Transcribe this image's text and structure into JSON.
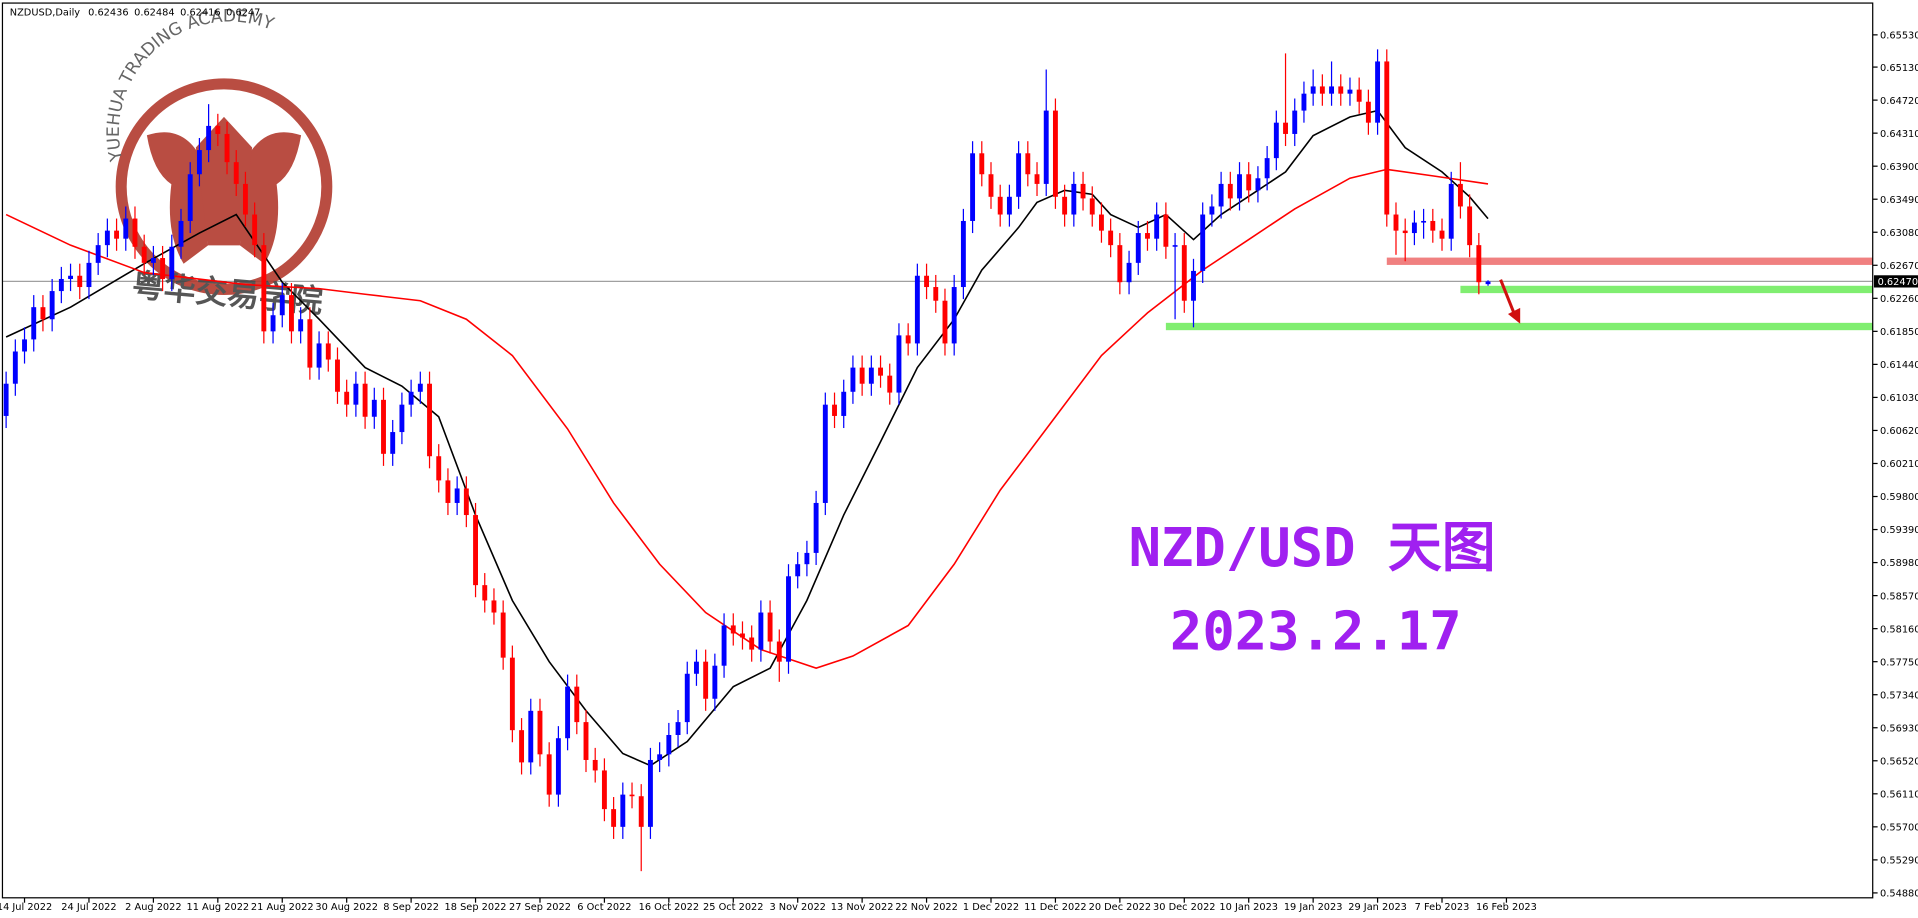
{
  "chart_data": {
    "type": "candlestick",
    "symbol": "NZDUSD,Daily",
    "annotations": [
      "NZD/USD 天图",
      "2023.2.17"
    ],
    "watermark": {
      "arc": "YUEHUA TRADING ACADEMY",
      "name": "粤华交易学院"
    },
    "colors": {
      "up": "#0000ff",
      "down": "#ff0000",
      "ma_fast": "#000000",
      "ma_slow": "#ff0000",
      "annotation": "#a020f0"
    },
    "ylim": [
      0.54637,
      0.65955
    ],
    "yticks": [
      {
        "value": 0.6553,
        "label": "0.65530"
      },
      {
        "value": 0.6513,
        "label": "0.65130"
      },
      {
        "value": 0.6472,
        "label": "0.64720"
      },
      {
        "value": 0.6431,
        "label": "0.64310"
      },
      {
        "value": 0.639,
        "label": "0.63900"
      },
      {
        "value": 0.6349,
        "label": "0.63490"
      },
      {
        "value": 0.6308,
        "label": "0.63080"
      },
      {
        "value": 0.6267,
        "label": "0.62670"
      },
      {
        "value": 0.6226,
        "label": "0.62260"
      },
      {
        "value": 0.6185,
        "label": "0.61850"
      },
      {
        "value": 0.6144,
        "label": "0.61440"
      },
      {
        "value": 0.6103,
        "label": "0.61030"
      },
      {
        "value": 0.6062,
        "label": "0.60620"
      },
      {
        "value": 0.6021,
        "label": "0.60210"
      },
      {
        "value": 0.598,
        "label": "0.59800"
      },
      {
        "value": 0.5939,
        "label": "0.59390"
      },
      {
        "value": 0.5898,
        "label": "0.58980"
      },
      {
        "value": 0.5857,
        "label": "0.58570"
      },
      {
        "value": 0.5816,
        "label": "0.58160"
      },
      {
        "value": 0.5775,
        "label": "0.57750"
      },
      {
        "value": 0.5734,
        "label": "0.57340"
      },
      {
        "value": 0.5693,
        "label": "0.56930"
      },
      {
        "value": 0.5652,
        "label": "0.56520"
      },
      {
        "value": 0.5611,
        "label": "0.56110"
      },
      {
        "value": 0.557,
        "label": "0.55700"
      },
      {
        "value": 0.5529,
        "label": "0.55290"
      },
      {
        "value": 0.5488,
        "label": "0.54880"
      }
    ],
    "xticks": [
      {
        "value": 2,
        "label": "14 Jul 2022"
      },
      {
        "value": 9,
        "label": "24 Jul 2022"
      },
      {
        "value": 16,
        "label": "2 Aug 2022"
      },
      {
        "value": 23,
        "label": "11 Aug 2022"
      },
      {
        "value": 30,
        "label": "21 Aug 2022"
      },
      {
        "value": 37,
        "label": "30 Aug 2022"
      },
      {
        "value": 44,
        "label": "8 Sep 2022"
      },
      {
        "value": 51,
        "label": "18 Sep 2022"
      },
      {
        "value": 58,
        "label": "27 Sep 2022"
      },
      {
        "value": 65,
        "label": "6 Oct 2022"
      },
      {
        "value": 72,
        "label": "16 Oct 2022"
      },
      {
        "value": 79,
        "label": "25 Oct 2022"
      },
      {
        "value": 86,
        "label": "3 Nov 2022"
      },
      {
        "value": 93,
        "label": "13 Nov 2022"
      },
      {
        "value": 100,
        "label": "22 Nov 2022"
      },
      {
        "value": 107,
        "label": "1 Dec 2022"
      },
      {
        "value": 114,
        "label": "11 Dec 2022"
      },
      {
        "value": 121,
        "label": "20 Dec 2022"
      },
      {
        "value": 128,
        "label": "30 Dec 2022"
      },
      {
        "value": 135,
        "label": "10 Jan 2023"
      },
      {
        "value": 142,
        "label": "19 Jan 2023"
      },
      {
        "value": 149,
        "label": "29 Jan 2023"
      },
      {
        "value": 156,
        "label": "7 Feb 2023"
      },
      {
        "value": 163,
        "label": "16 Feb 2023"
      }
    ],
    "current_price": {
      "value": 0.6247,
      "label": "0.62470"
    },
    "levels": [
      {
        "value": 0.6272,
        "from": 150,
        "color": "#f08080"
      },
      {
        "value": 0.6237,
        "from": 158,
        "color": "#80ee70"
      },
      {
        "value": 0.6191,
        "from": 126,
        "color": "#80ee70"
      }
    ],
    "ohlc": [
      [
        0.608,
        0.6135,
        0.6065,
        0.612
      ],
      [
        0.612,
        0.6175,
        0.6105,
        0.616
      ],
      [
        0.616,
        0.619,
        0.6145,
        0.6175
      ],
      [
        0.6175,
        0.623,
        0.616,
        0.6215
      ],
      [
        0.6215,
        0.623,
        0.6185,
        0.62
      ],
      [
        0.62,
        0.625,
        0.6185,
        0.6235
      ],
      [
        0.6235,
        0.6265,
        0.622,
        0.625
      ],
      [
        0.625,
        0.6269,
        0.6235,
        0.6254
      ],
      [
        0.6254,
        0.6269,
        0.6225,
        0.624
      ],
      [
        0.624,
        0.6285,
        0.6225,
        0.627
      ],
      [
        0.627,
        0.6307,
        0.6255,
        0.6292
      ],
      [
        0.6292,
        0.6325,
        0.6277,
        0.631
      ],
      [
        0.631,
        0.6325,
        0.6285,
        0.63
      ],
      [
        0.63,
        0.634,
        0.6285,
        0.6325
      ],
      [
        0.6325,
        0.634,
        0.6275,
        0.629
      ],
      [
        0.629,
        0.6305,
        0.6255,
        0.627
      ],
      [
        0.627,
        0.6291,
        0.6255,
        0.6276
      ],
      [
        0.6276,
        0.6291,
        0.6235,
        0.625
      ],
      [
        0.625,
        0.6305,
        0.6235,
        0.629
      ],
      [
        0.629,
        0.6337,
        0.6275,
        0.6322
      ],
      [
        0.6322,
        0.6395,
        0.6307,
        0.638
      ],
      [
        0.638,
        0.6425,
        0.6365,
        0.641
      ],
      [
        0.641,
        0.6467,
        0.6395,
        0.644
      ],
      [
        0.644,
        0.6455,
        0.6415,
        0.643
      ],
      [
        0.643,
        0.6445,
        0.638,
        0.6395
      ],
      [
        0.6395,
        0.641,
        0.6353,
        0.6368
      ],
      [
        0.6368,
        0.6383,
        0.6315,
        0.633
      ],
      [
        0.633,
        0.6345,
        0.6277,
        0.6292
      ],
      [
        0.6292,
        0.6307,
        0.617,
        0.6185
      ],
      [
        0.6185,
        0.622,
        0.617,
        0.6205
      ],
      [
        0.6205,
        0.6245,
        0.619,
        0.623
      ],
      [
        0.623,
        0.6245,
        0.617,
        0.6185
      ],
      [
        0.6185,
        0.6215,
        0.617,
        0.62
      ],
      [
        0.62,
        0.6215,
        0.6125,
        0.614
      ],
      [
        0.614,
        0.6185,
        0.6125,
        0.617
      ],
      [
        0.617,
        0.6185,
        0.6135,
        0.615
      ],
      [
        0.615,
        0.6165,
        0.6095,
        0.611
      ],
      [
        0.611,
        0.6125,
        0.6079,
        0.6094
      ],
      [
        0.6094,
        0.6135,
        0.6079,
        0.612
      ],
      [
        0.612,
        0.6135,
        0.6064,
        0.6079
      ],
      [
        0.6079,
        0.6115,
        0.6064,
        0.61
      ],
      [
        0.61,
        0.6115,
        0.6018,
        0.6033
      ],
      [
        0.6033,
        0.6075,
        0.6018,
        0.606
      ],
      [
        0.606,
        0.6109,
        0.6045,
        0.6094
      ],
      [
        0.6094,
        0.6125,
        0.6079,
        0.611
      ],
      [
        0.611,
        0.6135,
        0.6095,
        0.612
      ],
      [
        0.612,
        0.6135,
        0.6015,
        0.603
      ],
      [
        0.603,
        0.6045,
        0.5985,
        0.6
      ],
      [
        0.6,
        0.6015,
        0.5957,
        0.5972
      ],
      [
        0.5972,
        0.6005,
        0.5957,
        0.599
      ],
      [
        0.599,
        0.6005,
        0.5942,
        0.5957
      ],
      [
        0.5957,
        0.5972,
        0.5855,
        0.587
      ],
      [
        0.587,
        0.5885,
        0.5836,
        0.5851
      ],
      [
        0.5851,
        0.5866,
        0.5821,
        0.5836
      ],
      [
        0.5836,
        0.5851,
        0.5765,
        0.578
      ],
      [
        0.578,
        0.5795,
        0.5675,
        0.569
      ],
      [
        0.569,
        0.5705,
        0.5635,
        0.565
      ],
      [
        0.565,
        0.5729,
        0.5635,
        0.5714
      ],
      [
        0.5714,
        0.5729,
        0.5645,
        0.566
      ],
      [
        0.566,
        0.5675,
        0.5595,
        0.561
      ],
      [
        0.561,
        0.5695,
        0.5595,
        0.568
      ],
      [
        0.568,
        0.5759,
        0.5665,
        0.5744
      ],
      [
        0.5744,
        0.5759,
        0.5685,
        0.57
      ],
      [
        0.57,
        0.5715,
        0.5638,
        0.5653
      ],
      [
        0.5653,
        0.5668,
        0.5625,
        0.564
      ],
      [
        0.564,
        0.5655,
        0.5577,
        0.5592
      ],
      [
        0.5592,
        0.5607,
        0.5555,
        0.557
      ],
      [
        0.557,
        0.5625,
        0.5555,
        0.561
      ],
      [
        0.561,
        0.5625,
        0.5593,
        0.5608
      ],
      [
        0.5608,
        0.5623,
        0.5515,
        0.557
      ],
      [
        0.557,
        0.5668,
        0.5555,
        0.5653
      ],
      [
        0.5653,
        0.5675,
        0.5638,
        0.566
      ],
      [
        0.566,
        0.5699,
        0.5645,
        0.5684
      ],
      [
        0.5684,
        0.5715,
        0.5669,
        0.57
      ],
      [
        0.57,
        0.5775,
        0.5685,
        0.576
      ],
      [
        0.576,
        0.579,
        0.5745,
        0.5775
      ],
      [
        0.5775,
        0.579,
        0.5714,
        0.5729
      ],
      [
        0.5729,
        0.5785,
        0.5714,
        0.577
      ],
      [
        0.577,
        0.5835,
        0.5755,
        0.582
      ],
      [
        0.582,
        0.5835,
        0.5795,
        0.581
      ],
      [
        0.581,
        0.5825,
        0.579,
        0.5805
      ],
      [
        0.5805,
        0.582,
        0.5775,
        0.579
      ],
      [
        0.579,
        0.5851,
        0.5775,
        0.5836
      ],
      [
        0.5836,
        0.5851,
        0.5785,
        0.58
      ],
      [
        0.58,
        0.5815,
        0.575,
        0.5775
      ],
      [
        0.5775,
        0.5896,
        0.576,
        0.5881
      ],
      [
        0.5881,
        0.5911,
        0.5866,
        0.5896
      ],
      [
        0.5896,
        0.5925,
        0.5881,
        0.591
      ],
      [
        0.591,
        0.5987,
        0.5895,
        0.5972
      ],
      [
        0.5972,
        0.6109,
        0.5957,
        0.6094
      ],
      [
        0.6094,
        0.6109,
        0.6065,
        0.608
      ],
      [
        0.608,
        0.6125,
        0.6065,
        0.611
      ],
      [
        0.611,
        0.6155,
        0.6095,
        0.614
      ],
      [
        0.614,
        0.6155,
        0.6105,
        0.612
      ],
      [
        0.612,
        0.6155,
        0.6105,
        0.614
      ],
      [
        0.614,
        0.6155,
        0.6115,
        0.613
      ],
      [
        0.613,
        0.6145,
        0.6094,
        0.6109
      ],
      [
        0.6109,
        0.6195,
        0.6094,
        0.618
      ],
      [
        0.618,
        0.6195,
        0.6155,
        0.617
      ],
      [
        0.617,
        0.6269,
        0.6155,
        0.6254
      ],
      [
        0.6254,
        0.6269,
        0.6225,
        0.624
      ],
      [
        0.624,
        0.6255,
        0.6208,
        0.6223
      ],
      [
        0.6223,
        0.6238,
        0.6155,
        0.617
      ],
      [
        0.617,
        0.6255,
        0.6155,
        0.624
      ],
      [
        0.624,
        0.6337,
        0.6225,
        0.6322
      ],
      [
        0.6322,
        0.6421,
        0.6307,
        0.6406
      ],
      [
        0.6406,
        0.6421,
        0.6365,
        0.638
      ],
      [
        0.638,
        0.6395,
        0.6337,
        0.6352
      ],
      [
        0.6352,
        0.6367,
        0.6315,
        0.633
      ],
      [
        0.633,
        0.6367,
        0.6315,
        0.6352
      ],
      [
        0.6352,
        0.6421,
        0.6337,
        0.6406
      ],
      [
        0.6406,
        0.6421,
        0.6365,
        0.638
      ],
      [
        0.638,
        0.6395,
        0.6353,
        0.6368
      ],
      [
        0.6368,
        0.651,
        0.6353,
        0.6459
      ],
      [
        0.6459,
        0.6474,
        0.6337,
        0.6352
      ],
      [
        0.6352,
        0.6367,
        0.6315,
        0.633
      ],
      [
        0.633,
        0.6383,
        0.6315,
        0.6368
      ],
      [
        0.6368,
        0.6383,
        0.6335,
        0.635
      ],
      [
        0.635,
        0.6365,
        0.6315,
        0.633
      ],
      [
        0.633,
        0.6345,
        0.6295,
        0.631
      ],
      [
        0.631,
        0.6325,
        0.6277,
        0.6292
      ],
      [
        0.6292,
        0.6307,
        0.6231,
        0.6246
      ],
      [
        0.6246,
        0.6285,
        0.6231,
        0.627
      ],
      [
        0.627,
        0.6322,
        0.6255,
        0.6307
      ],
      [
        0.6307,
        0.6322,
        0.6285,
        0.63
      ],
      [
        0.63,
        0.6345,
        0.6285,
        0.633
      ],
      [
        0.633,
        0.6345,
        0.6275,
        0.629
      ],
      [
        0.629,
        0.6307,
        0.62,
        0.6292
      ],
      [
        0.6292,
        0.6307,
        0.6208,
        0.6223
      ],
      [
        0.6223,
        0.6275,
        0.619,
        0.626
      ],
      [
        0.626,
        0.6345,
        0.6245,
        0.633
      ],
      [
        0.633,
        0.6355,
        0.6315,
        0.634
      ],
      [
        0.634,
        0.6383,
        0.6325,
        0.6368
      ],
      [
        0.6368,
        0.6383,
        0.6335,
        0.635
      ],
      [
        0.635,
        0.6395,
        0.6335,
        0.638
      ],
      [
        0.638,
        0.6395,
        0.6345,
        0.636
      ],
      [
        0.636,
        0.639,
        0.6345,
        0.6375
      ],
      [
        0.6375,
        0.6415,
        0.636,
        0.64
      ],
      [
        0.64,
        0.6459,
        0.6385,
        0.6444
      ],
      [
        0.6444,
        0.653,
        0.6415,
        0.643
      ],
      [
        0.643,
        0.6474,
        0.6415,
        0.6459
      ],
      [
        0.6459,
        0.6495,
        0.6444,
        0.648
      ],
      [
        0.648,
        0.651,
        0.6465,
        0.6489
      ],
      [
        0.6489,
        0.6504,
        0.6465,
        0.648
      ],
      [
        0.648,
        0.652,
        0.6465,
        0.6489
      ],
      [
        0.6489,
        0.6504,
        0.6465,
        0.648
      ],
      [
        0.648,
        0.65,
        0.6465,
        0.6485
      ],
      [
        0.6485,
        0.65,
        0.6455,
        0.647
      ],
      [
        0.647,
        0.6485,
        0.6429,
        0.6444
      ],
      [
        0.6444,
        0.6535,
        0.6429,
        0.652
      ],
      [
        0.652,
        0.6535,
        0.6315,
        0.633
      ],
      [
        0.633,
        0.6345,
        0.628,
        0.631
      ],
      [
        0.631,
        0.6325,
        0.6272,
        0.6307
      ],
      [
        0.6307,
        0.6335,
        0.6292,
        0.632
      ],
      [
        0.632,
        0.6337,
        0.63,
        0.6322
      ],
      [
        0.6322,
        0.6337,
        0.6295,
        0.631
      ],
      [
        0.631,
        0.6325,
        0.6285,
        0.63
      ],
      [
        0.63,
        0.6383,
        0.6285,
        0.6368
      ],
      [
        0.6368,
        0.6395,
        0.6325,
        0.634
      ],
      [
        0.634,
        0.6355,
        0.6277,
        0.6292
      ],
      [
        0.6292,
        0.6307,
        0.6231,
        0.6246
      ],
      [
        0.62436,
        0.62484,
        0.62416,
        0.6247
      ]
    ],
    "ma": [
      {
        "x": [
          0,
          7,
          15,
          21,
          25,
          30,
          34,
          39,
          43,
          47,
          51,
          55,
          59,
          63,
          67,
          70,
          74,
          79,
          83,
          87,
          91,
          95,
          99,
          103,
          106,
          110,
          112,
          115,
          118,
          120,
          123,
          126,
          129,
          132,
          136,
          139,
          142,
          146,
          149,
          152,
          156,
          159,
          161
        ],
        "values": [
          0.6178,
          0.6215,
          0.6269,
          0.6307,
          0.633,
          0.6246,
          0.62,
          0.614,
          0.6117,
          0.6079,
          0.5957,
          0.5851,
          0.5775,
          0.5714,
          0.5661,
          0.5646,
          0.5676,
          0.5744,
          0.5767,
          0.5851,
          0.5957,
          0.6048,
          0.614,
          0.62,
          0.6261,
          0.6314,
          0.6345,
          0.636,
          0.6355,
          0.633,
          0.6314,
          0.633,
          0.6299,
          0.633,
          0.636,
          0.6383,
          0.6428,
          0.6451,
          0.6459,
          0.6413,
          0.6383,
          0.6352,
          0.6325
        ],
        "color": "#000000"
      },
      {
        "x": [
          0,
          7,
          15,
          26,
          34,
          39,
          45,
          50,
          55,
          61,
          66,
          71,
          76,
          82,
          88,
          92,
          98,
          103,
          108,
          114,
          119,
          124,
          130,
          135,
          140,
          146,
          150,
          155,
          161
        ],
        "values": [
          0.633,
          0.6292,
          0.6258,
          0.6243,
          0.6238,
          0.6231,
          0.6223,
          0.62,
          0.6155,
          0.6064,
          0.5972,
          0.5896,
          0.5836,
          0.579,
          0.5767,
          0.5782,
          0.582,
          0.5896,
          0.5988,
          0.6079,
          0.6155,
          0.6208,
          0.6261,
          0.6299,
          0.6337,
          0.6375,
          0.6386,
          0.6378,
          0.6368
        ],
        "color": "#ff0000"
      }
    ]
  }
}
